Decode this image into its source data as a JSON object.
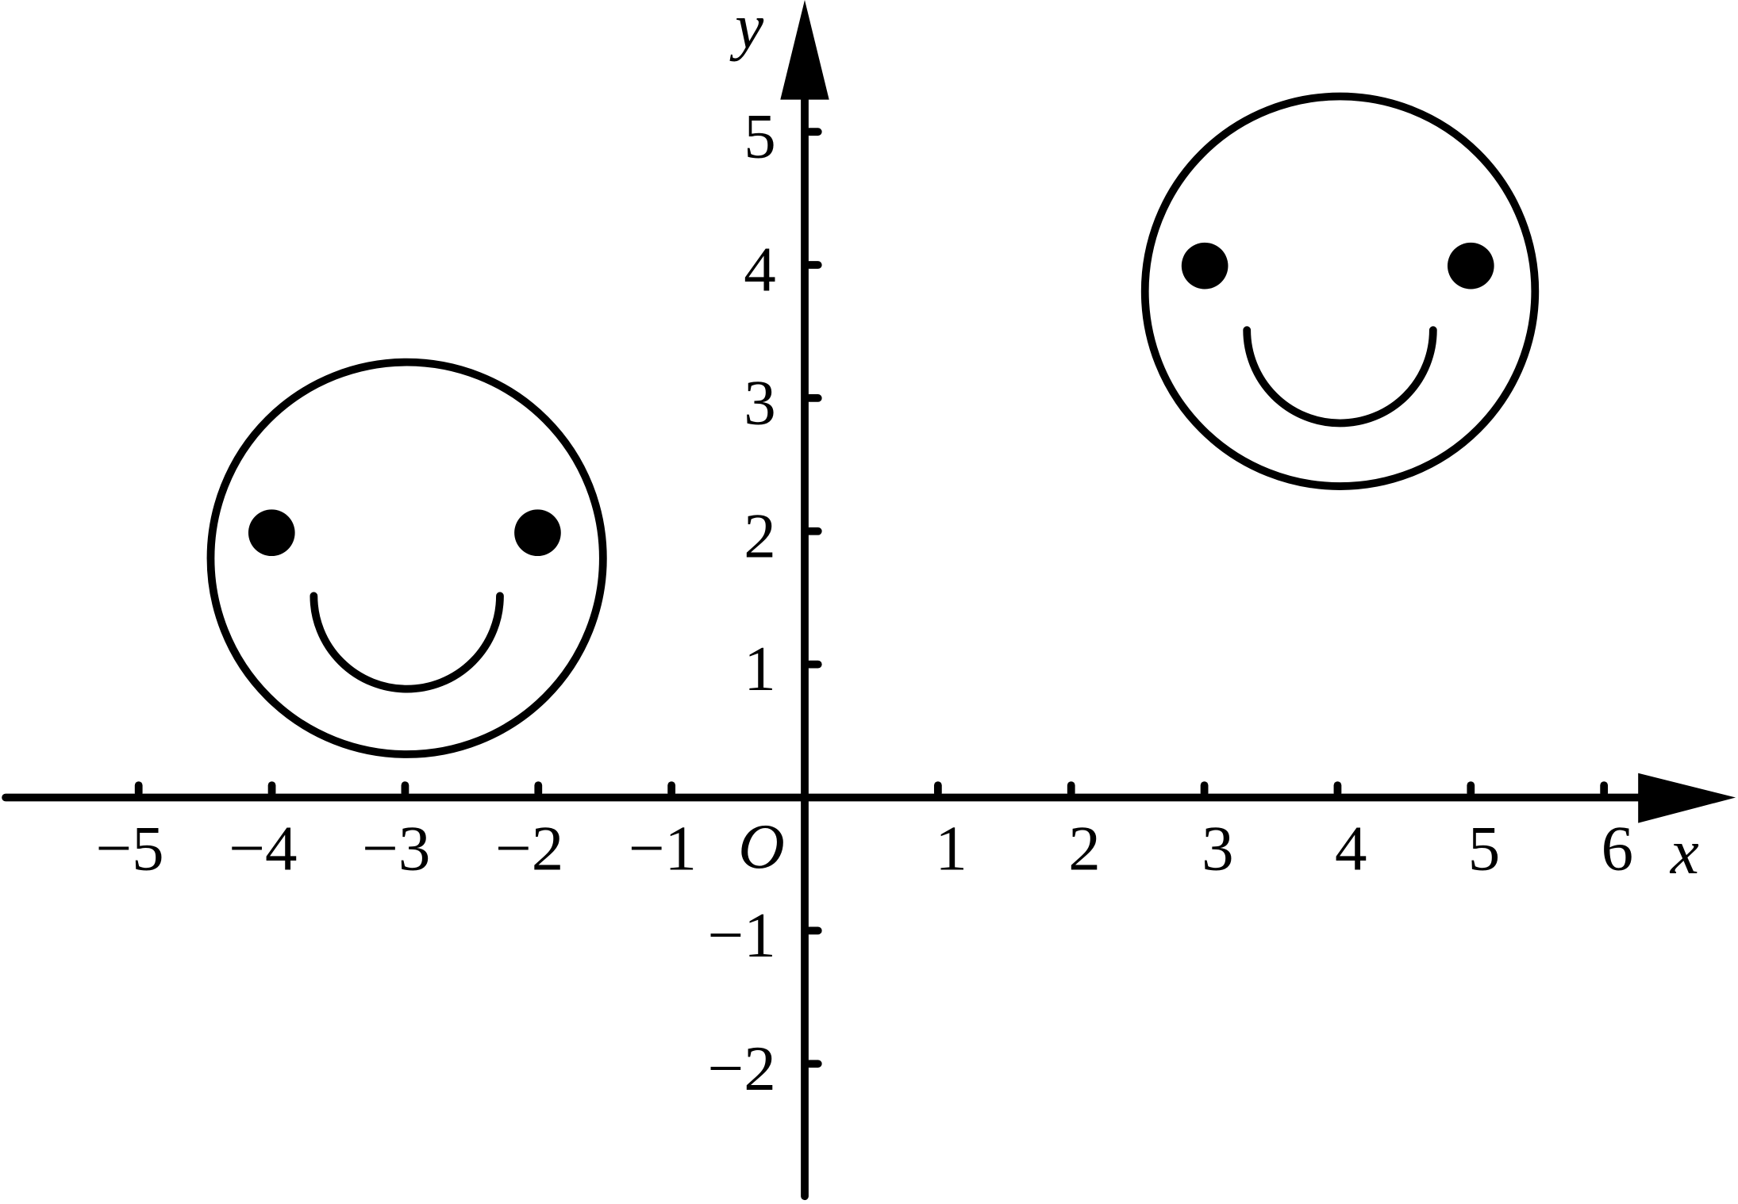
{
  "axes": {
    "x_label": "x",
    "y_label": "y",
    "origin": "O",
    "x_ticks": [
      "−5",
      "−4",
      "−3",
      "−2",
      "−1",
      "1",
      "2",
      "3",
      "4",
      "5",
      "6"
    ],
    "y_ticks": [
      "−2",
      "−1",
      "1",
      "2",
      "3",
      "4",
      "5"
    ]
  }
}
